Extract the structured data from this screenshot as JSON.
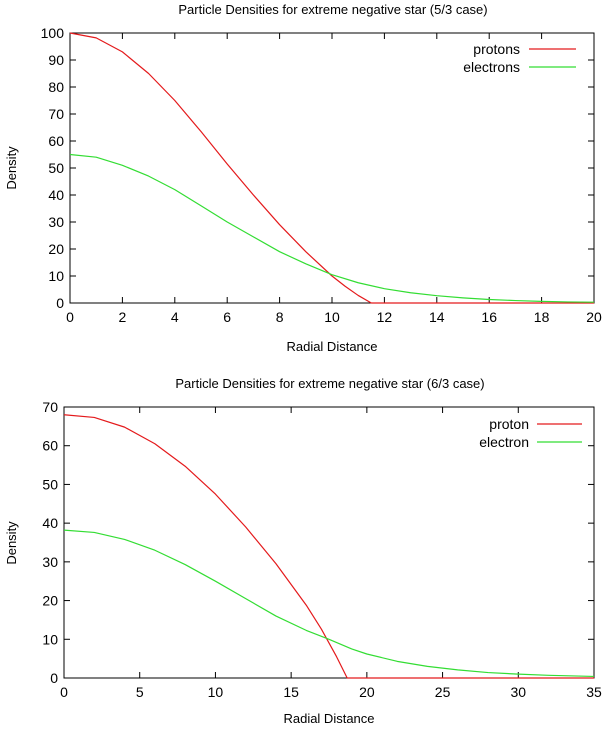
{
  "chart_data": [
    {
      "type": "line",
      "title": "Particle Densities for extreme negative star (5/3 case)",
      "xlabel": "Radial Distance",
      "ylabel": "Density",
      "xlim": [
        0,
        20
      ],
      "ylim": [
        0,
        100
      ],
      "xticks": [
        0,
        2,
        4,
        6,
        8,
        10,
        12,
        14,
        16,
        18,
        20
      ],
      "yticks": [
        0,
        10,
        20,
        30,
        40,
        50,
        60,
        70,
        80,
        90,
        100
      ],
      "grid": false,
      "legend_position": "top-right",
      "series": [
        {
          "name": "protons",
          "color": "#e41a1c",
          "x": [
            0,
            1,
            2,
            3,
            4,
            5,
            6,
            7,
            8,
            9,
            10,
            10.5,
            11,
            11.5,
            12,
            14,
            16,
            18,
            20
          ],
          "y": [
            100,
            98.2,
            93,
            85,
            75,
            63.5,
            51.5,
            40,
            29,
            19,
            10,
            6.2,
            2.8,
            0,
            0,
            0,
            0,
            0,
            0
          ]
        },
        {
          "name": "electrons",
          "color": "#33dd33",
          "x": [
            0,
            1,
            2,
            3,
            4,
            5,
            6,
            7,
            8,
            9,
            10,
            11,
            12,
            13,
            14,
            15,
            16,
            17,
            18,
            19,
            20
          ],
          "y": [
            55,
            54,
            51,
            47,
            42,
            36,
            30,
            24.5,
            19,
            14.5,
            10.5,
            7.5,
            5.3,
            3.8,
            2.7,
            1.9,
            1.3,
            0.9,
            0.6,
            0.4,
            0.3
          ]
        }
      ]
    },
    {
      "type": "line",
      "title": "Particle Densities for extreme negative star (6/3 case)",
      "xlabel": "Radial Distance",
      "ylabel": "Density",
      "xlim": [
        0,
        35
      ],
      "ylim": [
        0,
        70
      ],
      "xticks": [
        0,
        5,
        10,
        15,
        20,
        25,
        30,
        35
      ],
      "yticks": [
        0,
        10,
        20,
        30,
        40,
        50,
        60,
        70
      ],
      "grid": false,
      "legend_position": "top-right",
      "series": [
        {
          "name": "proton",
          "color": "#e41a1c",
          "x": [
            0,
            2,
            4,
            6,
            8,
            10,
            12,
            14,
            16,
            17,
            18,
            18.7,
            20,
            25,
            30,
            35
          ],
          "y": [
            68,
            67.3,
            64.8,
            60.5,
            54.7,
            47.5,
            39,
            29.5,
            18.8,
            12.6,
            5.5,
            0,
            0,
            0,
            0,
            0
          ]
        },
        {
          "name": "electron",
          "color": "#33dd33",
          "x": [
            0,
            2,
            4,
            6,
            8,
            10,
            12,
            14,
            16,
            17.5,
            19,
            20,
            22,
            24,
            26,
            28,
            30,
            32,
            35
          ],
          "y": [
            38.2,
            37.6,
            35.8,
            33,
            29.3,
            25,
            20.5,
            16,
            12.3,
            10,
            7.5,
            6.2,
            4.3,
            3,
            2.1,
            1.4,
            1,
            0.7,
            0.4
          ]
        }
      ]
    }
  ]
}
